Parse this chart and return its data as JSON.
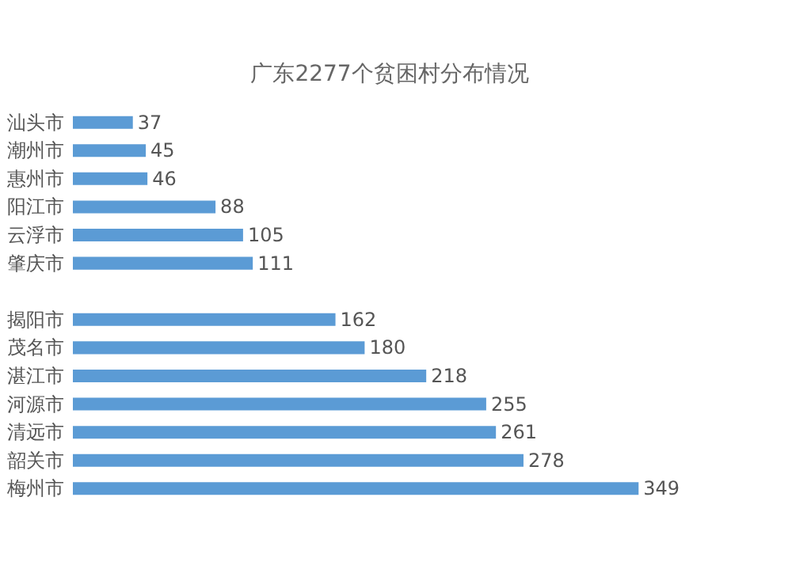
{
  "chart_data": {
    "type": "bar",
    "orientation": "horizontal",
    "title": "广东2277个贫困村分布情况",
    "categories": [
      "汕头市",
      "潮州市",
      "惠州市",
      "阳江市",
      "云浮市",
      "肇庆市",
      null,
      "揭阳市",
      "茂名市",
      "湛江市",
      "河源市",
      "清远市",
      "韶关市",
      "梅州市"
    ],
    "values": [
      37,
      45,
      46,
      88,
      105,
      111,
      null,
      162,
      180,
      218,
      255,
      261,
      278,
      349
    ],
    "color": "#5b9bd5",
    "data_labels": true
  }
}
